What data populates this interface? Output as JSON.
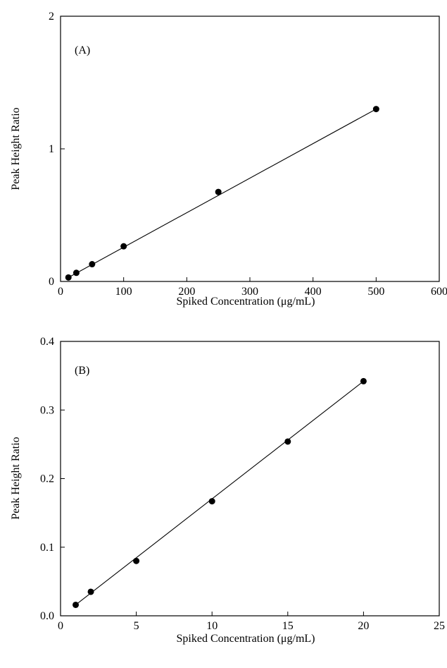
{
  "chart_data": [
    {
      "type": "scatter",
      "panel_label": "(A)",
      "xlabel": "Spiked Concentration (μg/mL)",
      "ylabel": "Peak Height Ratio",
      "xlim": [
        0,
        600
      ],
      "ylim": [
        0,
        2
      ],
      "x_ticks": [
        0,
        100,
        200,
        300,
        400,
        500,
        600
      ],
      "y_ticks": [
        0,
        1,
        2
      ],
      "x_tick_labels": [
        "0",
        "100",
        "200",
        "300",
        "400",
        "500",
        "600"
      ],
      "y_tick_labels": [
        "0",
        "1",
        "2"
      ],
      "grid": false,
      "series": [
        {
          "x": [
            12.5,
            25,
            50,
            100,
            250,
            500
          ],
          "y": [
            0.03,
            0.065,
            0.13,
            0.265,
            0.675,
            1.3
          ],
          "fit_line": true
        }
      ]
    },
    {
      "type": "scatter",
      "panel_label": "(B)",
      "xlabel": "Spiked Concentration (μg/mL)",
      "ylabel": "Peak Height Ratio",
      "xlim": [
        0,
        25
      ],
      "ylim": [
        0,
        0.4
      ],
      "x_ticks": [
        0,
        5,
        10,
        15,
        20,
        25
      ],
      "y_ticks": [
        0,
        0.1,
        0.2,
        0.3,
        0.4
      ],
      "x_tick_labels": [
        "0",
        "5",
        "10",
        "15",
        "20",
        "25"
      ],
      "y_tick_labels": [
        "0.0",
        "0.1",
        "0.2",
        "0.3",
        "0.4"
      ],
      "grid": false,
      "series": [
        {
          "x": [
            1,
            2,
            5,
            10,
            15,
            20
          ],
          "y": [
            0.016,
            0.035,
            0.08,
            0.167,
            0.254,
            0.342
          ],
          "fit_line": true
        }
      ]
    }
  ]
}
